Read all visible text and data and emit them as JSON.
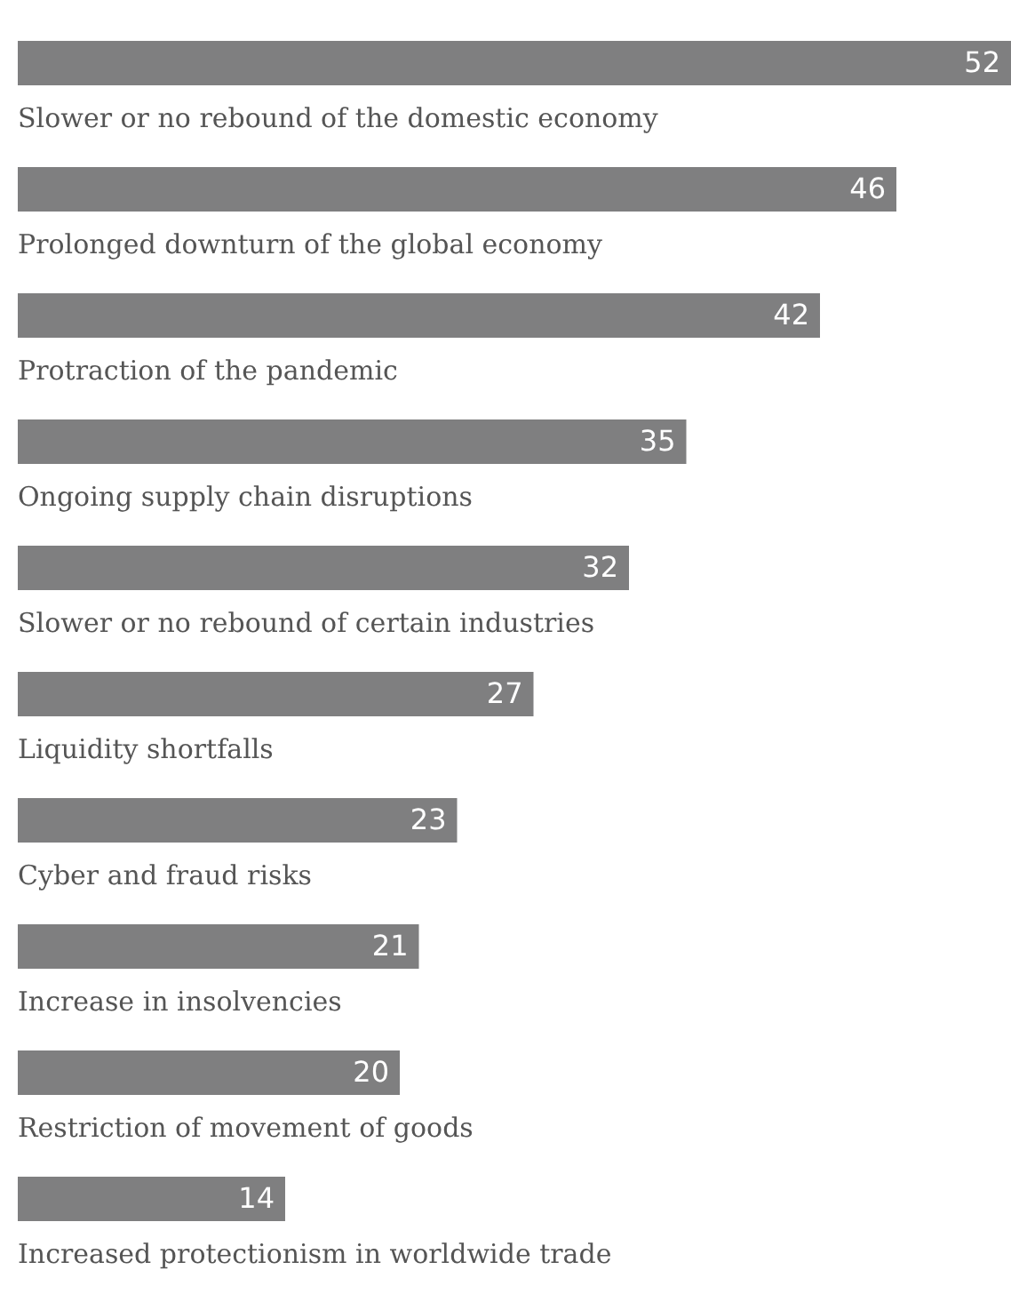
{
  "chart_data": {
    "type": "bar",
    "orientation": "horizontal",
    "color": "#7f7f80",
    "data_labels": true,
    "categories": [
      "Slower or no rebound of the domestic economy",
      "Prolonged downturn of the global economy",
      "Protraction of the pandemic",
      "Ongoing supply chain disruptions",
      "Slower or no rebound of certain industries",
      "Liquidity shortfalls",
      "Cyber and fraud risks",
      "Increase in insolvencies",
      "Restriction of movement of goods",
      "Increased protectionism in worldwide trade"
    ],
    "values": [
      52,
      46,
      42,
      35,
      32,
      27,
      23,
      21,
      20,
      14
    ]
  }
}
